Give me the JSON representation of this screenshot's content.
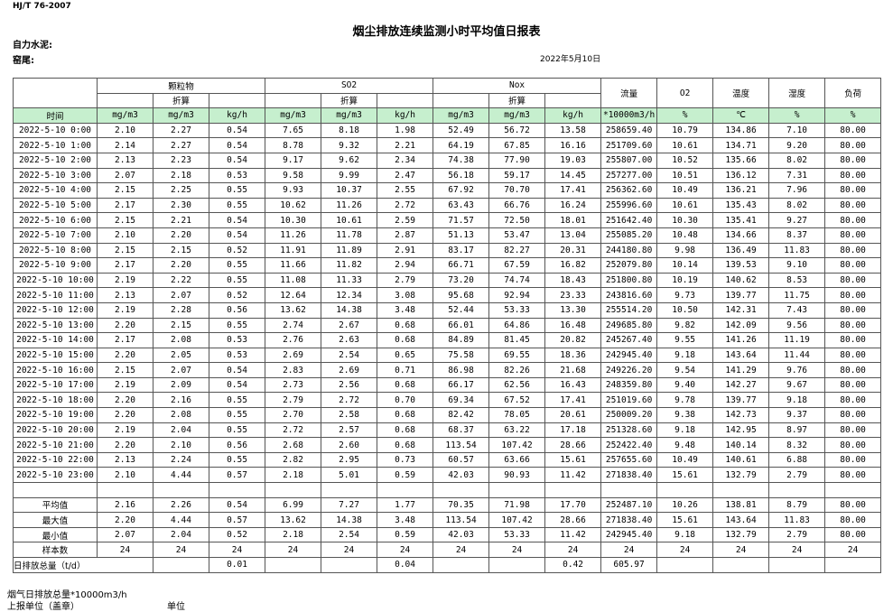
{
  "header": {
    "standard": "HJ/T  76-2007",
    "title": "烟尘排放连续监测小时平均值日报表",
    "company": "自力水泥:",
    "kiln": "窑尾:",
    "date": "2022年5月10日"
  },
  "table": {
    "group_headers": [
      "颗粒物",
      "SO2",
      "Nox"
    ],
    "side_headers": [
      "流量",
      "O2",
      "温度",
      "湿度",
      "负荷"
    ],
    "sub_label": "折算",
    "units": [
      "时间",
      "mg/m3",
      "mg/m3",
      "kg/h",
      "mg/m3",
      "mg/m3",
      "kg/h",
      "mg/m3",
      "mg/m3",
      "kg/h",
      "*10000m3/h",
      "%",
      "℃",
      "%",
      "%"
    ],
    "rows": [
      [
        "2022-5-10 0:00",
        "2.10",
        "2.27",
        "0.54",
        "7.65",
        "8.18",
        "1.98",
        "52.49",
        "56.72",
        "13.58",
        "258659.40",
        "10.79",
        "134.86",
        "7.10",
        "80.00"
      ],
      [
        "2022-5-10 1:00",
        "2.14",
        "2.27",
        "0.54",
        "8.78",
        "9.32",
        "2.21",
        "64.19",
        "67.85",
        "16.16",
        "251709.60",
        "10.61",
        "134.71",
        "9.20",
        "80.00"
      ],
      [
        "2022-5-10 2:00",
        "2.13",
        "2.23",
        "0.54",
        "9.17",
        "9.62",
        "2.34",
        "74.38",
        "77.90",
        "19.03",
        "255807.00",
        "10.52",
        "135.66",
        "8.02",
        "80.00"
      ],
      [
        "2022-5-10 3:00",
        "2.07",
        "2.18",
        "0.53",
        "9.58",
        "9.99",
        "2.47",
        "56.18",
        "59.17",
        "14.45",
        "257277.00",
        "10.51",
        "136.12",
        "7.31",
        "80.00"
      ],
      [
        "2022-5-10 4:00",
        "2.15",
        "2.25",
        "0.55",
        "9.93",
        "10.37",
        "2.55",
        "67.92",
        "70.70",
        "17.41",
        "256362.60",
        "10.49",
        "136.21",
        "7.96",
        "80.00"
      ],
      [
        "2022-5-10 5:00",
        "2.17",
        "2.30",
        "0.55",
        "10.62",
        "11.26",
        "2.72",
        "63.43",
        "66.76",
        "16.24",
        "255996.60",
        "10.61",
        "135.43",
        "8.02",
        "80.00"
      ],
      [
        "2022-5-10 6:00",
        "2.15",
        "2.21",
        "0.54",
        "10.30",
        "10.61",
        "2.59",
        "71.57",
        "72.50",
        "18.01",
        "251642.40",
        "10.30",
        "135.41",
        "9.27",
        "80.00"
      ],
      [
        "2022-5-10 7:00",
        "2.10",
        "2.20",
        "0.54",
        "11.26",
        "11.78",
        "2.87",
        "51.13",
        "53.47",
        "13.04",
        "255085.20",
        "10.48",
        "134.66",
        "8.37",
        "80.00"
      ],
      [
        "2022-5-10 8:00",
        "2.15",
        "2.15",
        "0.52",
        "11.91",
        "11.89",
        "2.91",
        "83.17",
        "82.27",
        "20.31",
        "244180.80",
        "9.98",
        "136.49",
        "11.83",
        "80.00"
      ],
      [
        "2022-5-10 9:00",
        "2.17",
        "2.20",
        "0.55",
        "11.66",
        "11.82",
        "2.94",
        "66.71",
        "67.59",
        "16.82",
        "252079.80",
        "10.14",
        "139.53",
        "9.10",
        "80.00"
      ],
      [
        "2022-5-10 10:00",
        "2.19",
        "2.22",
        "0.55",
        "11.08",
        "11.33",
        "2.79",
        "73.20",
        "74.74",
        "18.43",
        "251800.80",
        "10.19",
        "140.62",
        "8.53",
        "80.00"
      ],
      [
        "2022-5-10 11:00",
        "2.13",
        "2.07",
        "0.52",
        "12.64",
        "12.34",
        "3.08",
        "95.68",
        "92.94",
        "23.33",
        "243816.60",
        "9.73",
        "139.77",
        "11.75",
        "80.00"
      ],
      [
        "2022-5-10 12:00",
        "2.19",
        "2.28",
        "0.56",
        "13.62",
        "14.38",
        "3.48",
        "52.44",
        "53.33",
        "13.30",
        "255514.20",
        "10.50",
        "142.31",
        "7.43",
        "80.00"
      ],
      [
        "2022-5-10 13:00",
        "2.20",
        "2.15",
        "0.55",
        "2.74",
        "2.67",
        "0.68",
        "66.01",
        "64.86",
        "16.48",
        "249685.80",
        "9.82",
        "142.09",
        "9.56",
        "80.00"
      ],
      [
        "2022-5-10 14:00",
        "2.17",
        "2.08",
        "0.53",
        "2.76",
        "2.63",
        "0.68",
        "84.89",
        "81.45",
        "20.82",
        "245267.40",
        "9.55",
        "141.26",
        "11.19",
        "80.00"
      ],
      [
        "2022-5-10 15:00",
        "2.20",
        "2.05",
        "0.53",
        "2.69",
        "2.54",
        "0.65",
        "75.58",
        "69.55",
        "18.36",
        "242945.40",
        "9.18",
        "143.64",
        "11.44",
        "80.00"
      ],
      [
        "2022-5-10 16:00",
        "2.15",
        "2.07",
        "0.54",
        "2.83",
        "2.69",
        "0.71",
        "86.98",
        "82.26",
        "21.68",
        "249226.20",
        "9.54",
        "141.29",
        "9.76",
        "80.00"
      ],
      [
        "2022-5-10 17:00",
        "2.19",
        "2.09",
        "0.54",
        "2.73",
        "2.56",
        "0.68",
        "66.17",
        "62.56",
        "16.43",
        "248359.80",
        "9.40",
        "142.27",
        "9.67",
        "80.00"
      ],
      [
        "2022-5-10 18:00",
        "2.20",
        "2.16",
        "0.55",
        "2.79",
        "2.72",
        "0.70",
        "69.34",
        "67.52",
        "17.41",
        "251019.60",
        "9.78",
        "139.77",
        "9.18",
        "80.00"
      ],
      [
        "2022-5-10 19:00",
        "2.20",
        "2.08",
        "0.55",
        "2.70",
        "2.58",
        "0.68",
        "82.42",
        "78.05",
        "20.61",
        "250009.20",
        "9.38",
        "142.73",
        "9.37",
        "80.00"
      ],
      [
        "2022-5-10 20:00",
        "2.19",
        "2.04",
        "0.55",
        "2.72",
        "2.57",
        "0.68",
        "68.37",
        "63.22",
        "17.18",
        "251328.60",
        "9.18",
        "142.95",
        "8.97",
        "80.00"
      ],
      [
        "2022-5-10 21:00",
        "2.20",
        "2.10",
        "0.56",
        "2.68",
        "2.60",
        "0.68",
        "113.54",
        "107.42",
        "28.66",
        "252422.40",
        "9.48",
        "140.14",
        "8.32",
        "80.00"
      ],
      [
        "2022-5-10 22:00",
        "2.13",
        "2.24",
        "0.55",
        "2.82",
        "2.95",
        "0.73",
        "60.57",
        "63.66",
        "15.61",
        "257655.60",
        "10.49",
        "140.61",
        "6.88",
        "80.00"
      ],
      [
        "2022-5-10 23:00",
        "2.10",
        "4.44",
        "0.57",
        "2.18",
        "5.01",
        "0.59",
        "42.03",
        "90.93",
        "11.42",
        "271838.40",
        "15.61",
        "132.79",
        "2.79",
        "80.00"
      ]
    ],
    "summary": [
      [
        "平均值",
        "2.16",
        "2.26",
        "0.54",
        "6.99",
        "7.27",
        "1.77",
        "70.35",
        "71.98",
        "17.70",
        "252487.10",
        "10.26",
        "138.81",
        "8.79",
        "80.00"
      ],
      [
        "最大值",
        "2.20",
        "4.44",
        "0.57",
        "13.62",
        "14.38",
        "3.48",
        "113.54",
        "107.42",
        "28.66",
        "271838.40",
        "15.61",
        "143.64",
        "11.83",
        "80.00"
      ],
      [
        "最小值",
        "2.07",
        "2.04",
        "0.52",
        "2.18",
        "2.54",
        "0.59",
        "42.03",
        "53.33",
        "11.42",
        "242945.40",
        "9.18",
        "132.79",
        "2.79",
        "80.00"
      ],
      [
        "样本数",
        "24",
        "24",
        "24",
        "24",
        "24",
        "24",
        "24",
        "24",
        "24",
        "24",
        "24",
        "24",
        "24",
        "24"
      ]
    ],
    "total_row": [
      "日排放总量（t/d）",
      null,
      null,
      "0.01",
      null,
      null,
      "0.04",
      null,
      null,
      "0.42",
      "605.97",
      null,
      null,
      null,
      null
    ]
  },
  "footer": {
    "flue_gas": "烟气日排放总量*10000m3/h",
    "unit_stamp": "上报单位（盖章）",
    "unit": "单位"
  }
}
